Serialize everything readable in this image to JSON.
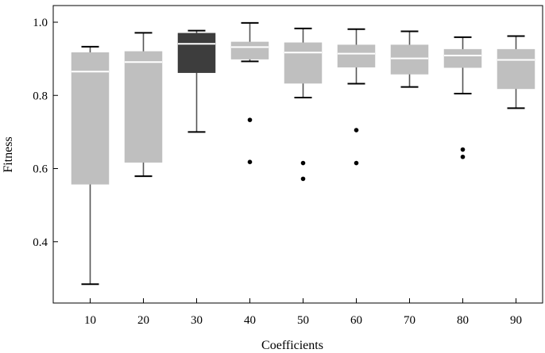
{
  "chart_data": {
    "type": "box",
    "xlabel": "Coefficients",
    "ylabel": "Fitness",
    "ylim": [
      0.22,
      1.05
    ],
    "yticks": [
      0.4,
      0.6,
      0.8,
      1.0
    ],
    "ytick_labels": [
      "0.4",
      "0.6",
      "0.8",
      "1.0"
    ],
    "grid": false,
    "colors": {
      "box_default": "#bfbfbf",
      "box_highlight": "#3d3d3d",
      "median": "#ffffff",
      "whisker": "#000000",
      "outlier": "#000000"
    },
    "boxes": [
      {
        "category": "10",
        "whisker_low": 0.284,
        "q1": 0.557,
        "median": 0.865,
        "q3": 0.917,
        "whisker_high": 0.933,
        "outliers": [],
        "highlight": false
      },
      {
        "category": "20",
        "whisker_low": 0.579,
        "q1": 0.617,
        "median": 0.891,
        "q3": 0.92,
        "whisker_high": 0.971,
        "outliers": [],
        "highlight": false
      },
      {
        "category": "30",
        "whisker_low": 0.7,
        "q1": 0.862,
        "median": 0.941,
        "q3": 0.97,
        "whisker_high": 0.977,
        "outliers": [],
        "highlight": true
      },
      {
        "category": "40",
        "whisker_low": 0.893,
        "q1": 0.899,
        "median": 0.932,
        "q3": 0.946,
        "whisker_high": 0.998,
        "outliers": [
          0.733,
          0.618
        ],
        "highlight": false
      },
      {
        "category": "50",
        "whisker_low": 0.794,
        "q1": 0.833,
        "median": 0.917,
        "q3": 0.944,
        "whisker_high": 0.983,
        "outliers": [
          0.615,
          0.572
        ],
        "highlight": false
      },
      {
        "category": "60",
        "whisker_low": 0.832,
        "q1": 0.877,
        "median": 0.914,
        "q3": 0.938,
        "whisker_high": 0.981,
        "outliers": [
          0.705,
          0.615
        ],
        "highlight": false
      },
      {
        "category": "70",
        "whisker_low": 0.823,
        "q1": 0.858,
        "median": 0.901,
        "q3": 0.938,
        "whisker_high": 0.975,
        "outliers": [],
        "highlight": false
      },
      {
        "category": "80",
        "whisker_low": 0.805,
        "q1": 0.876,
        "median": 0.909,
        "q3": 0.926,
        "whisker_high": 0.959,
        "outliers": [
          0.652,
          0.632
        ],
        "highlight": false
      },
      {
        "category": "90",
        "whisker_low": 0.765,
        "q1": 0.818,
        "median": 0.897,
        "q3": 0.926,
        "whisker_high": 0.962,
        "outliers": [],
        "highlight": false
      }
    ]
  }
}
